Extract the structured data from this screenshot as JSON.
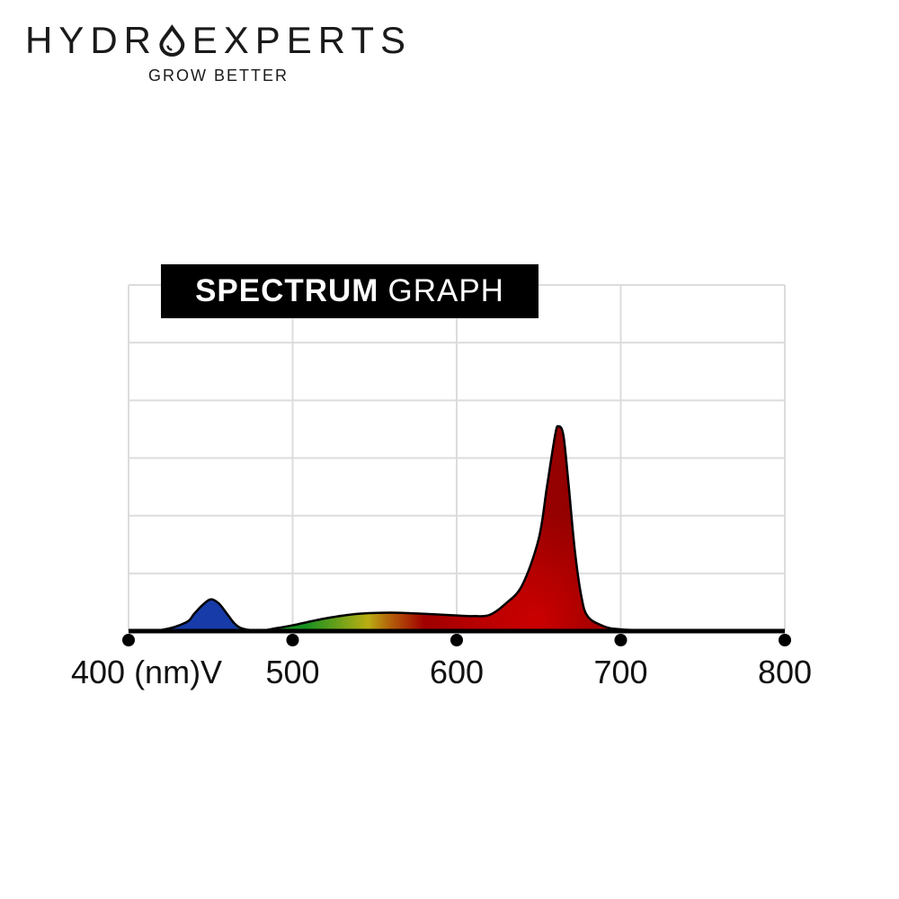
{
  "brand": {
    "name_part1": "HYDR",
    "name_part2": "EXPERTS",
    "tagline": "GROW BETTER"
  },
  "chart_data": {
    "type": "area",
    "title_bold": "SPECTRUM",
    "title_light": "GRAPH",
    "xlabel": "",
    "ylabel": "",
    "xlim": [
      400,
      800
    ],
    "ylim": [
      0,
      6
    ],
    "grid": true,
    "x_ticks": [
      {
        "value": 400,
        "label": "400 (nm)V"
      },
      {
        "value": 500,
        "label": "500"
      },
      {
        "value": 600,
        "label": "600"
      },
      {
        "value": 700,
        "label": "700"
      },
      {
        "value": 800,
        "label": "800"
      }
    ],
    "x_gridlines": [
      500,
      600,
      700,
      800
    ],
    "y_gridlines": [
      1,
      2,
      3,
      4,
      5,
      6
    ],
    "x": [
      400,
      420,
      435,
      440,
      445,
      450,
      455,
      460,
      465,
      470,
      480,
      490,
      500,
      520,
      540,
      560,
      580,
      600,
      610,
      620,
      630,
      640,
      650,
      655,
      660,
      662,
      665,
      668,
      672,
      676,
      680,
      690,
      700,
      720,
      750,
      800
    ],
    "y": [
      0.0,
      0.02,
      0.15,
      0.3,
      0.45,
      0.55,
      0.48,
      0.3,
      0.12,
      0.04,
      0.01,
      0.05,
      0.1,
      0.22,
      0.3,
      0.32,
      0.3,
      0.27,
      0.26,
      0.28,
      0.48,
      0.8,
      1.6,
      2.5,
      3.4,
      3.55,
      3.4,
      2.6,
      1.4,
      0.6,
      0.25,
      0.08,
      0.03,
      0.01,
      0.0,
      0.0
    ],
    "colors": {
      "blue": "#1e4fe0",
      "green": "#1fc22a",
      "yellow": "#f7e81a",
      "orange": "#f08a10",
      "red": "#d80000",
      "dark_red": "#9a0000",
      "outline": "#000000",
      "grid": "#dcdcdc",
      "axis": "#000000"
    }
  }
}
